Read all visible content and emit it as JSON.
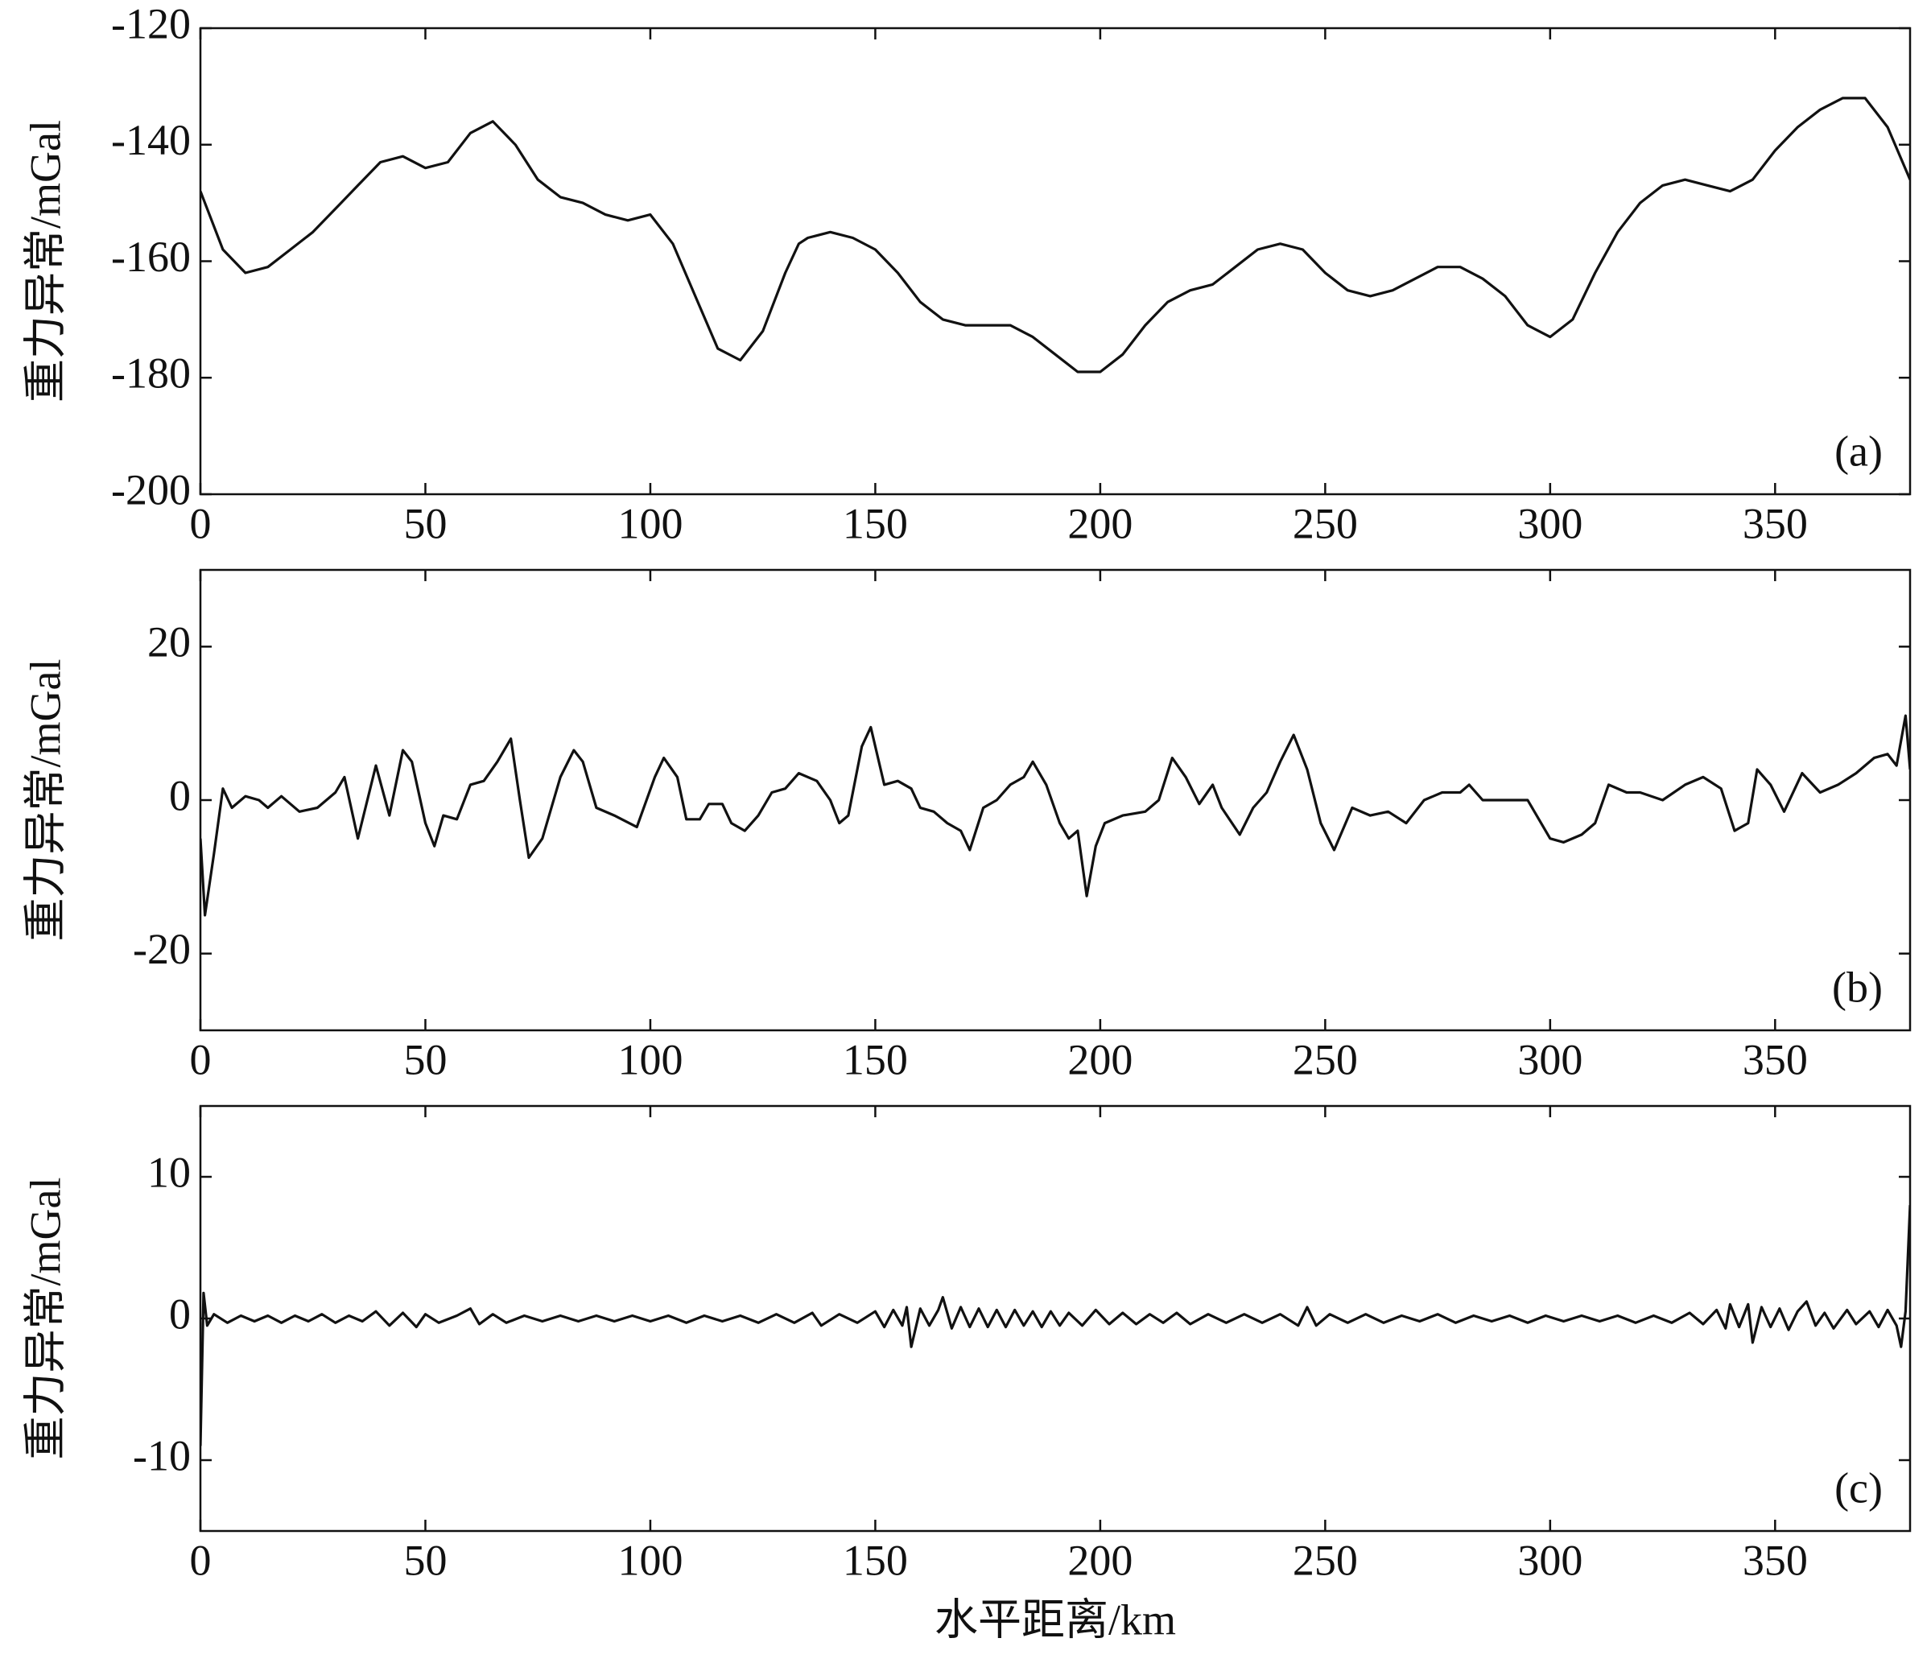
{
  "chart_data": [
    {
      "type": "line",
      "y_label": "重力异常/mGal",
      "annotation": "(a)",
      "color": "#111111",
      "xlim": [
        0,
        380
      ],
      "xticks": [
        0,
        50,
        100,
        150,
        200,
        250,
        300,
        350
      ],
      "ylim": [
        -200,
        -120
      ],
      "yticks": [
        -200,
        -180,
        -160,
        -140,
        -120
      ],
      "x": [
        0,
        5,
        10,
        15,
        20,
        25,
        30,
        35,
        40,
        45,
        50,
        55,
        60,
        65,
        70,
        75,
        80,
        85,
        90,
        95,
        100,
        105,
        110,
        115,
        120,
        125,
        130,
        133,
        135,
        140,
        145,
        150,
        155,
        160,
        165,
        170,
        175,
        180,
        185,
        190,
        195,
        200,
        205,
        210,
        215,
        220,
        225,
        230,
        235,
        240,
        245,
        250,
        255,
        260,
        265,
        270,
        275,
        280,
        285,
        290,
        295,
        300,
        305,
        310,
        315,
        320,
        325,
        330,
        335,
        340,
        345,
        350,
        355,
        360,
        365,
        370,
        375,
        380
      ],
      "values": [
        -148,
        -158,
        -162,
        -161,
        -158,
        -155,
        -151,
        -147,
        -143,
        -142,
        -144,
        -143,
        -138,
        -136,
        -140,
        -146,
        -149,
        -150,
        -152,
        -153,
        -152,
        -157,
        -166,
        -175,
        -177,
        -172,
        -162,
        -157,
        -156,
        -155,
        -156,
        -158,
        -162,
        -167,
        -170,
        -171,
        -171,
        -171,
        -173,
        -176,
        -179,
        -179,
        -176,
        -171,
        -167,
        -165,
        -164,
        -161,
        -158,
        -157,
        -158,
        -162,
        -165,
        -166,
        -165,
        -163,
        -161,
        -161,
        -163,
        -166,
        -171,
        -173,
        -170,
        -162,
        -155,
        -150,
        -147,
        -146,
        -147,
        -148,
        -146,
        -141,
        -137,
        -134,
        -132,
        -132,
        -137,
        -146
      ]
    },
    {
      "type": "line",
      "y_label": "重力异常/mGal",
      "annotation": "(b)",
      "color": "#111111",
      "xlim": [
        0,
        380
      ],
      "xticks": [
        0,
        50,
        100,
        150,
        200,
        250,
        300,
        350
      ],
      "ylim": [
        -30,
        30
      ],
      "yticks": [
        -20,
        0,
        20
      ],
      "x": [
        0,
        1,
        3,
        5,
        7,
        10,
        13,
        15,
        18,
        22,
        26,
        30,
        32,
        35,
        39,
        42,
        45,
        47,
        50,
        52,
        54,
        57,
        60,
        63,
        66,
        69,
        71,
        73,
        76,
        80,
        83,
        85,
        88,
        92,
        97,
        101,
        103,
        106,
        108,
        111,
        113,
        116,
        118,
        121,
        124,
        127,
        130,
        133,
        137,
        140,
        142,
        144,
        147,
        149,
        152,
        155,
        158,
        160,
        163,
        166,
        169,
        171,
        174,
        177,
        180,
        183,
        185,
        188,
        191,
        193,
        195,
        197,
        199,
        201,
        205,
        210,
        213,
        216,
        219,
        222,
        225,
        227,
        231,
        234,
        237,
        240,
        243,
        246,
        249,
        252,
        256,
        260,
        264,
        268,
        272,
        276,
        280,
        282,
        285,
        290,
        295,
        300,
        303,
        307,
        310,
        313,
        317,
        320,
        325,
        330,
        334,
        338,
        341,
        344,
        346,
        349,
        352,
        356,
        360,
        364,
        368,
        372,
        375,
        377,
        379,
        380
      ],
      "values": [
        -5,
        -15,
        -7,
        1.5,
        -1,
        0.5,
        0,
        -1,
        0.5,
        -1.5,
        -1,
        1,
        3,
        -5,
        4.5,
        -2,
        6.5,
        5,
        -3,
        -6,
        -2,
        -2.5,
        2,
        2.5,
        5,
        8,
        0,
        -7.5,
        -5,
        3,
        6.5,
        5,
        -1,
        -2,
        -3.5,
        3,
        5.5,
        3,
        -2.5,
        -2.5,
        -0.5,
        -0.5,
        -3,
        -4,
        -2,
        1,
        1.5,
        3.5,
        2.5,
        0,
        -3,
        -2,
        7,
        9.5,
        2,
        2.5,
        1.5,
        -1,
        -1.5,
        -3,
        -4,
        -6.5,
        -1,
        0,
        2,
        3,
        5,
        2,
        -3,
        -5,
        -4,
        -12.5,
        -6,
        -3,
        -2,
        -1.5,
        0,
        5.5,
        3,
        -0.5,
        2,
        -1,
        -4.5,
        -1,
        1,
        5,
        8.5,
        4,
        -3,
        -6.5,
        -1,
        -2,
        -1.5,
        -3,
        0,
        1,
        1,
        2,
        0,
        0,
        0,
        -5,
        -5.5,
        -4.5,
        -3,
        2,
        1,
        1,
        0,
        2,
        3,
        1.5,
        -4,
        -3,
        4,
        2,
        -1.5,
        3.5,
        1,
        2,
        3.5,
        5.5,
        6,
        4.5,
        11,
        4
      ]
    },
    {
      "type": "line",
      "y_label": "重力异常/mGal",
      "annotation": "(c)",
      "x_label": "水平距离/km",
      "color": "#111111",
      "xlim": [
        0,
        380
      ],
      "xticks": [
        0,
        50,
        100,
        150,
        200,
        250,
        300,
        350
      ],
      "ylim": [
        -15,
        15
      ],
      "yticks": [
        -10,
        0,
        10
      ],
      "x": [
        0,
        0.7,
        1.5,
        3,
        6,
        9,
        12,
        15,
        18,
        21,
        24,
        27,
        30,
        33,
        36,
        39,
        42,
        45,
        48,
        50,
        53,
        57,
        60,
        62,
        65,
        68,
        72,
        76,
        80,
        84,
        88,
        92,
        96,
        100,
        104,
        108,
        112,
        116,
        120,
        124,
        128,
        132,
        136,
        138,
        142,
        146,
        150,
        152,
        154,
        156,
        157,
        158,
        160,
        162,
        164,
        165,
        167,
        169,
        171,
        173,
        175,
        177,
        179,
        181,
        183,
        185,
        187,
        189,
        191,
        193,
        196,
        199,
        202,
        205,
        208,
        211,
        214,
        217,
        220,
        224,
        228,
        232,
        236,
        240,
        244,
        246,
        248,
        251,
        255,
        259,
        263,
        267,
        271,
        275,
        279,
        283,
        287,
        291,
        295,
        299,
        303,
        307,
        311,
        315,
        319,
        323,
        327,
        331,
        334,
        337,
        339,
        340,
        342,
        344,
        345,
        347,
        349,
        351,
        353,
        355,
        357,
        359,
        361,
        363,
        366,
        368,
        371,
        373,
        375,
        377,
        378,
        379,
        380
      ],
      "values": [
        -9,
        1.8,
        -0.5,
        0.3,
        -0.3,
        0.2,
        -0.2,
        0.2,
        -0.3,
        0.2,
        -0.2,
        0.3,
        -0.3,
        0.2,
        -0.2,
        0.5,
        -0.5,
        0.4,
        -0.6,
        0.3,
        -0.3,
        0.2,
        0.7,
        -0.4,
        0.3,
        -0.3,
        0.2,
        -0.2,
        0.2,
        -0.2,
        0.2,
        -0.2,
        0.2,
        -0.2,
        0.2,
        -0.3,
        0.2,
        -0.2,
        0.2,
        -0.3,
        0.3,
        -0.3,
        0.4,
        -0.5,
        0.3,
        -0.3,
        0.5,
        -0.6,
        0.6,
        -0.5,
        0.8,
        -2,
        0.7,
        -0.5,
        0.6,
        1.5,
        -0.7,
        0.8,
        -0.6,
        0.7,
        -0.6,
        0.6,
        -0.6,
        0.6,
        -0.5,
        0.5,
        -0.6,
        0.5,
        -0.5,
        0.4,
        -0.5,
        0.6,
        -0.4,
        0.4,
        -0.4,
        0.3,
        -0.3,
        0.4,
        -0.4,
        0.3,
        -0.3,
        0.3,
        -0.3,
        0.3,
        -0.5,
        0.8,
        -0.5,
        0.3,
        -0.3,
        0.3,
        -0.3,
        0.2,
        -0.2,
        0.3,
        -0.3,
        0.2,
        -0.2,
        0.2,
        -0.3,
        0.2,
        -0.2,
        0.2,
        -0.2,
        0.2,
        -0.3,
        0.2,
        -0.3,
        0.4,
        -0.4,
        0.6,
        -0.7,
        1,
        -0.6,
        1,
        -1.7,
        0.8,
        -0.6,
        0.7,
        -0.8,
        0.5,
        1.2,
        -0.5,
        0.4,
        -0.7,
        0.6,
        -0.4,
        0.5,
        -0.6,
        0.6,
        -0.5,
        -2,
        0.5,
        8
      ]
    }
  ]
}
